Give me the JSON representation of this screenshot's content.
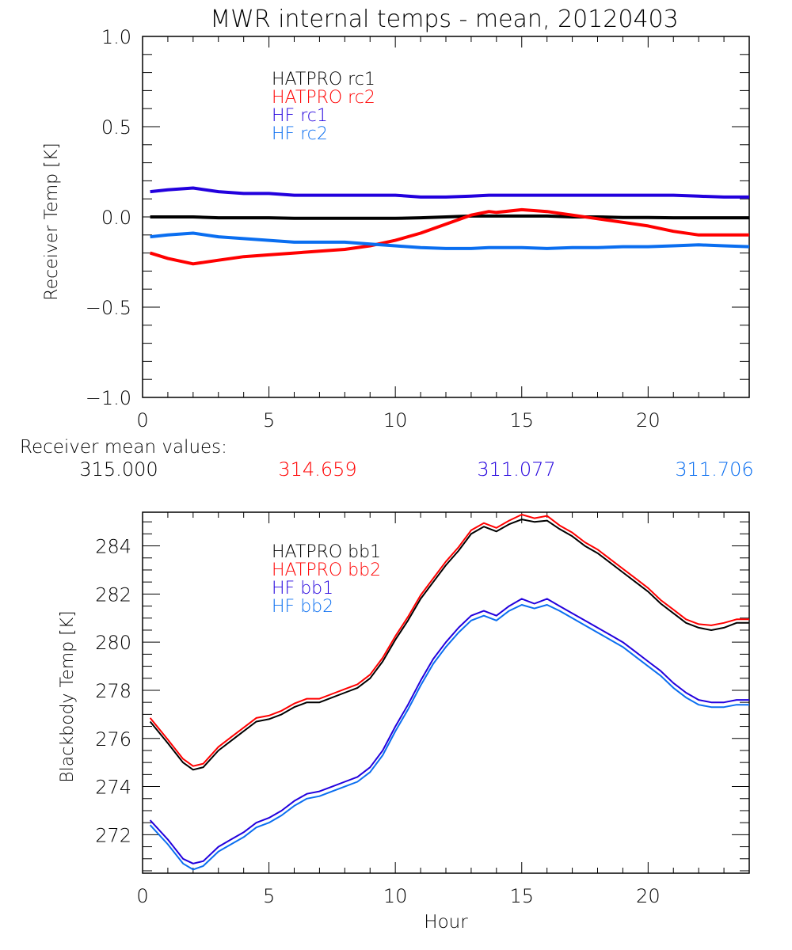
{
  "title": "MWR internal temps - mean, 20120403",
  "receiver_means": {
    "label": "Receiver mean values:",
    "values": [
      "315.000",
      "314.659",
      "311.077",
      "311.706"
    ]
  },
  "chart_data": [
    {
      "type": "line",
      "title": "MWR internal temps - mean, 20120403",
      "xlabel": "",
      "ylabel": "Receiver Temp [K]",
      "xlim": [
        0,
        24
      ],
      "ylim": [
        -1.0,
        1.0
      ],
      "xticks": [
        "0",
        "5",
        "10",
        "15",
        "20"
      ],
      "xtick_values": [
        0,
        5,
        10,
        15,
        20
      ],
      "yticks": [
        "-1.0",
        "-0.5",
        "0.0",
        "0.5",
        "1.0"
      ],
      "ytick_values": [
        -1.0,
        -0.5,
        0.0,
        0.5,
        1.0
      ],
      "grid": false,
      "legend_position": "top-left-inside",
      "x": [
        0.3,
        1,
        2,
        3,
        4,
        5,
        6,
        7,
        8,
        9,
        10,
        11,
        12,
        13,
        13.7,
        14,
        15,
        16,
        17,
        18,
        19,
        20,
        21,
        22,
        23,
        24
      ],
      "series": [
        {
          "name": "HATPRO rc1",
          "color": "#000000",
          "values": [
            0.0,
            0.0,
            0.0,
            -0.005,
            -0.005,
            -0.005,
            -0.008,
            -0.008,
            -0.008,
            -0.008,
            -0.008,
            -0.005,
            0.0,
            0.005,
            0.005,
            0.005,
            0.005,
            0.005,
            0.0,
            0.0,
            -0.003,
            -0.003,
            -0.005,
            -0.005,
            -0.005,
            -0.005
          ]
        },
        {
          "name": "HATPRO rc2",
          "color": "#ff0000",
          "values": [
            -0.2,
            -0.23,
            -0.26,
            -0.24,
            -0.22,
            -0.21,
            -0.2,
            -0.19,
            -0.18,
            -0.16,
            -0.13,
            -0.09,
            -0.04,
            0.01,
            0.03,
            0.025,
            0.04,
            0.03,
            0.01,
            -0.01,
            -0.03,
            -0.05,
            -0.08,
            -0.1,
            -0.1,
            -0.1
          ]
        },
        {
          "name": "HF rc1",
          "color": "#2200dd",
          "values": [
            0.14,
            0.15,
            0.16,
            0.14,
            0.13,
            0.13,
            0.12,
            0.12,
            0.12,
            0.12,
            0.12,
            0.11,
            0.11,
            0.115,
            0.12,
            0.12,
            0.12,
            0.12,
            0.12,
            0.12,
            0.12,
            0.12,
            0.12,
            0.115,
            0.11,
            0.11
          ]
        },
        {
          "name": "HF rc2",
          "color": "#0a6ef0",
          "values": [
            -0.11,
            -0.1,
            -0.09,
            -0.11,
            -0.12,
            -0.13,
            -0.14,
            -0.14,
            -0.14,
            -0.15,
            -0.16,
            -0.17,
            -0.175,
            -0.175,
            -0.17,
            -0.17,
            -0.17,
            -0.175,
            -0.17,
            -0.17,
            -0.165,
            -0.165,
            -0.16,
            -0.155,
            -0.16,
            -0.165
          ]
        }
      ]
    },
    {
      "type": "line",
      "title": "",
      "xlabel": "Hour",
      "ylabel": "Blackbody Temp [K]",
      "xlim": [
        0,
        24
      ],
      "ylim": [
        270.4,
        285.4
      ],
      "xticks": [
        "0",
        "5",
        "10",
        "15",
        "20"
      ],
      "xtick_values": [
        0,
        5,
        10,
        15,
        20
      ],
      "yticks": [
        "272",
        "274",
        "276",
        "278",
        "280",
        "282",
        "284"
      ],
      "ytick_values": [
        272,
        274,
        276,
        278,
        280,
        282,
        284
      ],
      "grid": false,
      "legend_position": "top-left-inside",
      "x": [
        0.3,
        1,
        1.6,
        2,
        2.4,
        3,
        3.5,
        4,
        4.5,
        5,
        5.5,
        6,
        6.5,
        7,
        7.5,
        8,
        8.5,
        9,
        9.5,
        10,
        10.5,
        11,
        11.5,
        12,
        12.5,
        13,
        13.5,
        14,
        14.5,
        15,
        15.5,
        16,
        16.5,
        17,
        17.5,
        18,
        18.5,
        19,
        19.5,
        20,
        20.5,
        21,
        21.5,
        22,
        22.5,
        23,
        23.5,
        24
      ],
      "series": [
        {
          "name": "HATPRO bb1",
          "color": "#000000",
          "values": [
            276.7,
            275.8,
            275.0,
            274.7,
            274.8,
            275.5,
            275.9,
            276.3,
            276.7,
            276.8,
            277.0,
            277.3,
            277.5,
            277.5,
            277.7,
            277.9,
            278.1,
            278.5,
            279.2,
            280.1,
            280.9,
            281.8,
            282.5,
            283.2,
            283.8,
            284.5,
            284.8,
            284.6,
            284.9,
            285.1,
            285.0,
            285.05,
            284.7,
            284.4,
            284.0,
            283.7,
            283.3,
            282.9,
            282.5,
            282.1,
            281.6,
            281.2,
            280.8,
            280.6,
            280.5,
            280.6,
            280.8,
            280.8
          ]
        },
        {
          "name": "HATPRO bb2",
          "color": "#ff0000",
          "values": [
            276.85,
            275.95,
            275.15,
            274.85,
            274.95,
            275.65,
            276.05,
            276.45,
            276.85,
            276.95,
            277.15,
            277.45,
            277.65,
            277.65,
            277.85,
            278.05,
            278.25,
            278.65,
            279.35,
            280.25,
            281.05,
            281.95,
            282.65,
            283.35,
            283.95,
            284.65,
            284.95,
            284.75,
            285.05,
            285.3,
            285.15,
            285.25,
            284.85,
            284.55,
            284.15,
            283.85,
            283.45,
            283.05,
            282.65,
            282.25,
            281.75,
            281.35,
            280.95,
            280.75,
            280.7,
            280.8,
            280.95,
            280.95
          ]
        },
        {
          "name": "HF bb1",
          "color": "#2200dd",
          "values": [
            272.6,
            271.8,
            271.0,
            270.8,
            270.9,
            271.5,
            271.8,
            272.1,
            272.5,
            272.7,
            273.0,
            273.4,
            273.7,
            273.8,
            274.0,
            274.2,
            274.4,
            274.8,
            275.5,
            276.5,
            277.4,
            278.4,
            279.3,
            280.0,
            280.6,
            281.1,
            281.3,
            281.1,
            281.5,
            281.8,
            281.6,
            281.8,
            281.5,
            281.2,
            280.9,
            280.6,
            280.3,
            280.0,
            279.6,
            279.2,
            278.8,
            278.3,
            277.9,
            277.6,
            277.5,
            277.5,
            277.6,
            277.6
          ]
        },
        {
          "name": "HF bb2",
          "color": "#0a6ef0",
          "values": [
            272.4,
            271.6,
            270.8,
            270.55,
            270.7,
            271.3,
            271.6,
            271.9,
            272.3,
            272.5,
            272.8,
            273.2,
            273.5,
            273.6,
            273.8,
            274.0,
            274.2,
            274.6,
            275.3,
            276.3,
            277.2,
            278.2,
            279.1,
            279.8,
            280.4,
            280.9,
            281.1,
            280.9,
            281.3,
            281.55,
            281.4,
            281.55,
            281.3,
            281.0,
            280.7,
            280.4,
            280.1,
            279.8,
            279.4,
            279.0,
            278.6,
            278.1,
            277.7,
            277.4,
            277.3,
            277.3,
            277.4,
            277.4
          ]
        }
      ]
    }
  ]
}
